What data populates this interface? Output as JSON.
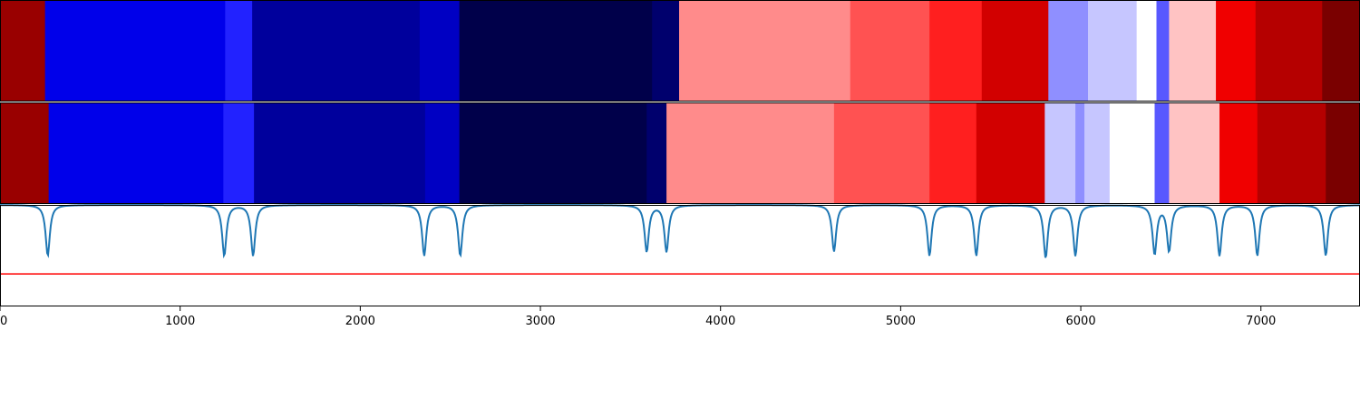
{
  "chart_data": [
    {
      "type": "heatmap",
      "segments": [
        {
          "start": 0,
          "end": 250,
          "color": "#990000"
        },
        {
          "start": 250,
          "end": 1250,
          "color": "#0000ea"
        },
        {
          "start": 1250,
          "end": 1400,
          "color": "#2222ff"
        },
        {
          "start": 1400,
          "end": 2330,
          "color": "#00009c"
        },
        {
          "start": 2330,
          "end": 2550,
          "color": "#0000c3"
        },
        {
          "start": 2550,
          "end": 3620,
          "color": "#00004a"
        },
        {
          "start": 3620,
          "end": 3770,
          "color": "#00006d"
        },
        {
          "start": 3770,
          "end": 4720,
          "color": "#ff8b8b"
        },
        {
          "start": 4720,
          "end": 5160,
          "color": "#ff5252"
        },
        {
          "start": 5160,
          "end": 5450,
          "color": "#ff1f1f"
        },
        {
          "start": 5450,
          "end": 5820,
          "color": "#d20000"
        },
        {
          "start": 5820,
          "end": 6040,
          "color": "#8f8fff"
        },
        {
          "start": 6040,
          "end": 6310,
          "color": "#c6c6ff"
        },
        {
          "start": 6310,
          "end": 6420,
          "color": "#ffffff"
        },
        {
          "start": 6420,
          "end": 6490,
          "color": "#5858ff"
        },
        {
          "start": 6490,
          "end": 6750,
          "color": "#ffc3c3"
        },
        {
          "start": 6750,
          "end": 6970,
          "color": "#f00000"
        },
        {
          "start": 6970,
          "end": 7340,
          "color": "#b50000"
        },
        {
          "start": 7340,
          "end": 7550,
          "color": "#7a0000"
        }
      ]
    },
    {
      "type": "heatmap",
      "segments": [
        {
          "start": 0,
          "end": 270,
          "color": "#990000"
        },
        {
          "start": 270,
          "end": 1240,
          "color": "#0000ea"
        },
        {
          "start": 1240,
          "end": 1410,
          "color": "#2222ff"
        },
        {
          "start": 1410,
          "end": 2360,
          "color": "#00009c"
        },
        {
          "start": 2360,
          "end": 2550,
          "color": "#0000c3"
        },
        {
          "start": 2550,
          "end": 3590,
          "color": "#00004a"
        },
        {
          "start": 3590,
          "end": 3700,
          "color": "#00006d"
        },
        {
          "start": 3700,
          "end": 4630,
          "color": "#ff8b8b"
        },
        {
          "start": 4630,
          "end": 5160,
          "color": "#ff5252"
        },
        {
          "start": 5160,
          "end": 5420,
          "color": "#ff1f1f"
        },
        {
          "start": 5420,
          "end": 5800,
          "color": "#d20000"
        },
        {
          "start": 5800,
          "end": 5970,
          "color": "#c6c6ff"
        },
        {
          "start": 5970,
          "end": 6020,
          "color": "#8f8fff"
        },
        {
          "start": 6020,
          "end": 6160,
          "color": "#c6c6ff"
        },
        {
          "start": 6160,
          "end": 6410,
          "color": "#ffffff"
        },
        {
          "start": 6410,
          "end": 6490,
          "color": "#5858ff"
        },
        {
          "start": 6490,
          "end": 6770,
          "color": "#ffc3c3"
        },
        {
          "start": 6770,
          "end": 6980,
          "color": "#f00000"
        },
        {
          "start": 6980,
          "end": 7360,
          "color": "#b50000"
        },
        {
          "start": 7360,
          "end": 7550,
          "color": "#7a0000"
        }
      ]
    },
    {
      "type": "line",
      "x_ticks": [
        0,
        1000,
        2000,
        3000,
        4000,
        5000,
        6000,
        7000
      ],
      "x_tick_labels": [
        "0",
        "1000",
        "2000",
        "3000",
        "4000",
        "5000",
        "6000",
        "7000"
      ],
      "xlim": [
        0,
        7550
      ],
      "ylim": [
        0,
        1
      ],
      "baseline": 0.32,
      "line_color": "#1f77b4",
      "threshold_color": "#ff0000",
      "dips": [
        {
          "x": 265,
          "depth": 0.5
        },
        {
          "x": 1245,
          "depth": 0.5
        },
        {
          "x": 1405,
          "depth": 0.5
        },
        {
          "x": 2355,
          "depth": 0.5
        },
        {
          "x": 2555,
          "depth": 0.5
        },
        {
          "x": 3590,
          "depth": 0.46
        },
        {
          "x": 3700,
          "depth": 0.46
        },
        {
          "x": 4630,
          "depth": 0.46
        },
        {
          "x": 5160,
          "depth": 0.5
        },
        {
          "x": 5420,
          "depth": 0.5
        },
        {
          "x": 5805,
          "depth": 0.52
        },
        {
          "x": 5970,
          "depth": 0.5
        },
        {
          "x": 6410,
          "depth": 0.48
        },
        {
          "x": 6490,
          "depth": 0.45
        },
        {
          "x": 6770,
          "depth": 0.5
        },
        {
          "x": 6980,
          "depth": 0.5
        },
        {
          "x": 7360,
          "depth": 0.5
        }
      ]
    }
  ]
}
